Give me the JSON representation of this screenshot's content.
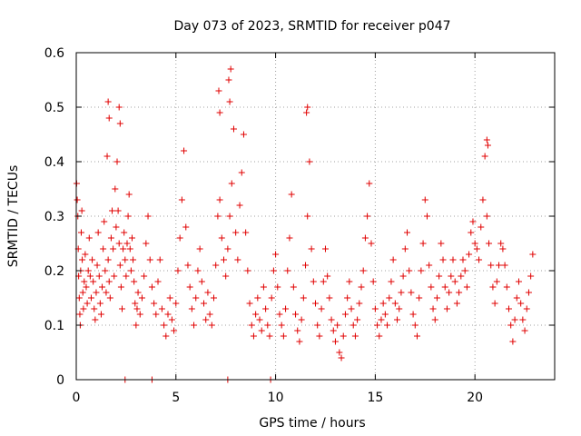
{
  "chart_data": {
    "type": "scatter",
    "title": "Day 073 of 2023, SRMTID for receiver p047",
    "xlabel": "GPS time / hours",
    "ylabel": "SRMTID / TECUs",
    "xlim": [
      0,
      24
    ],
    "ylim": [
      0,
      0.6
    ],
    "xticks": [
      0,
      5,
      10,
      15,
      20
    ],
    "yticks": [
      0,
      0.1,
      0.2,
      0.3,
      0.4,
      0.5,
      0.6
    ],
    "xtick_labels": [
      "0",
      "5",
      "10",
      "15",
      "20"
    ],
    "ytick_labels": [
      "0",
      "0.1",
      "0.2",
      "0.3",
      "0.4",
      "0.5",
      "0.6"
    ],
    "grid": true,
    "marker": "+",
    "color": "#e00000",
    "series": [
      {
        "name": "SRMTID",
        "x": [
          0.02,
          0.05,
          0.08,
          0.1,
          0.12,
          0.15,
          0.18,
          0.2,
          0.22,
          0.25,
          0.28,
          0.3,
          0.33,
          0.36,
          0.4,
          0.45,
          0.5,
          0.55,
          0.6,
          0.65,
          0.7,
          0.75,
          0.8,
          0.85,
          0.9,
          0.95,
          1.0,
          1.05,
          1.1,
          1.15,
          1.2,
          1.25,
          1.3,
          1.35,
          1.4,
          1.45,
          1.5,
          1.55,
          1.6,
          1.65,
          1.7,
          1.75,
          1.8,
          1.85,
          1.9,
          1.95,
          2.0,
          2.05,
          2.1,
          2.15,
          2.2,
          2.25,
          2.3,
          2.35,
          2.4,
          2.45,
          2.5,
          2.55,
          2.6,
          2.65,
          2.7,
          2.75,
          2.8,
          2.85,
          2.9,
          2.95,
          3.0,
          3.05,
          3.1,
          3.2,
          3.3,
          3.4,
          3.5,
          3.6,
          3.7,
          3.8,
          3.9,
          4.0,
          4.1,
          4.2,
          4.3,
          4.4,
          4.5,
          4.6,
          4.7,
          4.8,
          4.9,
          5.0,
          5.1,
          5.2,
          5.3,
          5.4,
          5.5,
          5.6,
          5.7,
          5.8,
          5.9,
          6.0,
          6.1,
          6.2,
          6.3,
          6.4,
          6.5,
          6.6,
          6.7,
          6.8,
          6.9,
          7.0,
          7.1,
          7.2,
          7.3,
          7.4,
          7.5,
          7.6,
          7.7,
          7.8,
          7.9,
          8.0,
          8.1,
          8.2,
          8.3,
          8.4,
          8.5,
          8.6,
          8.7,
          8.8,
          8.9,
          9.0,
          9.1,
          9.2,
          9.3,
          9.4,
          9.5,
          9.6,
          9.7,
          9.8,
          9.9,
          10.0,
          10.1,
          10.2,
          10.3,
          10.4,
          10.5,
          10.6,
          10.7,
          10.8,
          10.9,
          11.0,
          11.1,
          11.2,
          11.3,
          11.4,
          11.5,
          11.6,
          11.7,
          11.8,
          11.9,
          12.0,
          12.1,
          12.2,
          12.3,
          12.4,
          12.5,
          12.6,
          12.7,
          12.8,
          12.9,
          13.0,
          13.1,
          13.2,
          13.3,
          13.4,
          13.5,
          13.6,
          13.7,
          13.8,
          13.9,
          14.0,
          14.1,
          14.2,
          14.3,
          14.4,
          14.5,
          14.6,
          14.7,
          14.8,
          14.9,
          15.0,
          15.1,
          15.2,
          15.3,
          15.4,
          15.5,
          15.6,
          15.7,
          15.8,
          15.9,
          16.0,
          16.1,
          16.2,
          16.3,
          16.4,
          16.5,
          16.6,
          16.7,
          16.8,
          16.9,
          17.0,
          17.1,
          17.2,
          17.3,
          17.4,
          17.5,
          17.6,
          17.7,
          17.8,
          17.9,
          18.0,
          18.1,
          18.2,
          18.3,
          18.4,
          18.5,
          18.6,
          18.7,
          18.8,
          18.9,
          19.0,
          19.1,
          19.2,
          19.3,
          19.4,
          19.5,
          19.6,
          19.7,
          19.8,
          19.9,
          20.0,
          20.1,
          20.2,
          20.3,
          20.4,
          20.5,
          20.6,
          20.7,
          20.8,
          20.9,
          21.0,
          21.1,
          21.2,
          21.3,
          21.4,
          21.5,
          21.6,
          21.7,
          21.8,
          21.9,
          22.0,
          22.1,
          22.2,
          22.3,
          22.4,
          22.5,
          22.6,
          22.7,
          22.8,
          22.9,
          1.6,
          1.65,
          2.15,
          2.2,
          7.15,
          7.2,
          7.65,
          7.7,
          7.75,
          11.55,
          11.6,
          20.6,
          20.65,
          2.45,
          3.8,
          7.6,
          9.75
        ],
        "y": [
          0.36,
          0.33,
          0.3,
          0.24,
          0.19,
          0.15,
          0.12,
          0.1,
          0.2,
          0.27,
          0.31,
          0.22,
          0.16,
          0.13,
          0.18,
          0.23,
          0.17,
          0.14,
          0.2,
          0.26,
          0.19,
          0.15,
          0.22,
          0.18,
          0.13,
          0.11,
          0.16,
          0.21,
          0.27,
          0.19,
          0.14,
          0.12,
          0.17,
          0.24,
          0.29,
          0.2,
          0.16,
          0.41,
          0.22,
          0.18,
          0.15,
          0.26,
          0.31,
          0.24,
          0.19,
          0.35,
          0.28,
          0.4,
          0.31,
          0.25,
          0.21,
          0.17,
          0.13,
          0.24,
          0.27,
          0.22,
          0.19,
          0.25,
          0.3,
          0.34,
          0.24,
          0.2,
          0.26,
          0.22,
          0.18,
          0.14,
          0.1,
          0.13,
          0.16,
          0.12,
          0.15,
          0.19,
          0.25,
          0.3,
          0.22,
          0.17,
          0.14,
          0.12,
          0.18,
          0.22,
          0.13,
          0.1,
          0.08,
          0.12,
          0.15,
          0.11,
          0.09,
          0.14,
          0.2,
          0.26,
          0.33,
          0.42,
          0.28,
          0.21,
          0.17,
          0.13,
          0.1,
          0.15,
          0.2,
          0.24,
          0.18,
          0.14,
          0.11,
          0.16,
          0.12,
          0.1,
          0.15,
          0.21,
          0.3,
          0.33,
          0.26,
          0.22,
          0.19,
          0.24,
          0.3,
          0.36,
          0.46,
          0.27,
          0.22,
          0.32,
          0.38,
          0.45,
          0.27,
          0.2,
          0.14,
          0.1,
          0.08,
          0.12,
          0.15,
          0.11,
          0.09,
          0.17,
          0.13,
          0.1,
          0.08,
          0.15,
          0.2,
          0.23,
          0.17,
          0.12,
          0.1,
          0.08,
          0.13,
          0.2,
          0.26,
          0.34,
          0.17,
          0.12,
          0.09,
          0.07,
          0.11,
          0.15,
          0.21,
          0.3,
          0.4,
          0.24,
          0.18,
          0.14,
          0.1,
          0.08,
          0.13,
          0.18,
          0.24,
          0.19,
          0.15,
          0.11,
          0.09,
          0.07,
          0.1,
          0.05,
          0.04,
          0.08,
          0.12,
          0.15,
          0.18,
          0.13,
          0.1,
          0.08,
          0.11,
          0.14,
          0.17,
          0.2,
          0.26,
          0.3,
          0.36,
          0.25,
          0.18,
          0.13,
          0.1,
          0.08,
          0.11,
          0.14,
          0.12,
          0.1,
          0.15,
          0.18,
          0.22,
          0.14,
          0.11,
          0.13,
          0.16,
          0.19,
          0.24,
          0.27,
          0.2,
          0.16,
          0.12,
          0.1,
          0.08,
          0.15,
          0.2,
          0.25,
          0.33,
          0.3,
          0.21,
          0.17,
          0.13,
          0.11,
          0.15,
          0.19,
          0.25,
          0.22,
          0.17,
          0.13,
          0.16,
          0.19,
          0.22,
          0.18,
          0.14,
          0.16,
          0.19,
          0.22,
          0.2,
          0.17,
          0.23,
          0.27,
          0.29,
          0.25,
          0.24,
          0.22,
          0.28,
          0.33,
          0.41,
          0.3,
          0.25,
          0.21,
          0.17,
          0.14,
          0.18,
          0.21,
          0.25,
          0.24,
          0.21,
          0.17,
          0.13,
          0.1,
          0.07,
          0.11,
          0.15,
          0.18,
          0.14,
          0.11,
          0.09,
          0.13,
          0.16,
          0.19,
          0.23,
          0.51,
          0.48,
          0.5,
          0.47,
          0.53,
          0.49,
          0.55,
          0.51,
          0.57,
          0.49,
          0.5,
          0.44,
          0.43,
          0.0,
          0.0,
          0.0,
          0.0
        ]
      }
    ]
  }
}
